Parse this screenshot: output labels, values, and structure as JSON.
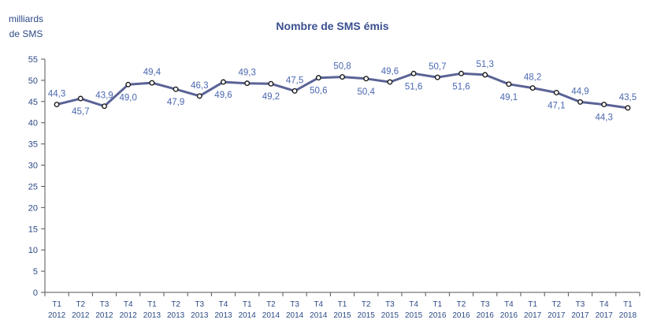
{
  "chart_data": {
    "type": "line",
    "title": "Nombre de SMS émis",
    "ylabel_lines": [
      "milliards",
      "de SMS"
    ],
    "xlabel": "",
    "ylim": [
      0,
      55
    ],
    "yticks": [
      0,
      5,
      10,
      15,
      20,
      25,
      30,
      35,
      40,
      45,
      50,
      55
    ],
    "grid": false,
    "legend": "none",
    "categories": [
      {
        "q": "T1",
        "y": "2012"
      },
      {
        "q": "T2",
        "y": "2012"
      },
      {
        "q": "T3",
        "y": "2012"
      },
      {
        "q": "T4",
        "y": "2012"
      },
      {
        "q": "T1",
        "y": "2013"
      },
      {
        "q": "T2",
        "y": "2013"
      },
      {
        "q": "T3",
        "y": "2013"
      },
      {
        "q": "T4",
        "y": "2013"
      },
      {
        "q": "T1",
        "y": "2014"
      },
      {
        "q": "T2",
        "y": "2014"
      },
      {
        "q": "T3",
        "y": "2014"
      },
      {
        "q": "T4",
        "y": "2014"
      },
      {
        "q": "T1",
        "y": "2015"
      },
      {
        "q": "T2",
        "y": "2015"
      },
      {
        "q": "T3",
        "y": "2015"
      },
      {
        "q": "T4",
        "y": "2015"
      },
      {
        "q": "T1",
        "y": "2016"
      },
      {
        "q": "T2",
        "y": "2016"
      },
      {
        "q": "T3",
        "y": "2016"
      },
      {
        "q": "T4",
        "y": "2016"
      },
      {
        "q": "T1",
        "y": "2017"
      },
      {
        "q": "T2",
        "y": "2017"
      },
      {
        "q": "T3",
        "y": "2017"
      },
      {
        "q": "T4",
        "y": "2017"
      },
      {
        "q": "T1",
        "y": "2018"
      }
    ],
    "series": [
      {
        "values": [
          44.3,
          45.7,
          43.9,
          49.0,
          49.4,
          47.9,
          46.3,
          49.6,
          49.3,
          49.2,
          47.5,
          50.6,
          50.8,
          50.4,
          49.6,
          51.6,
          50.7,
          51.6,
          51.3,
          49.1,
          48.2,
          47.1,
          44.9,
          44.3,
          43.5
        ],
        "labels": [
          "44,3",
          "45,7",
          "43,9",
          "49,0",
          "49,4",
          "47,9",
          "46,3",
          "49,6",
          "49,3",
          "49,2",
          "47,5",
          "50,6",
          "50,8",
          "50,4",
          "49,6",
          "51,6",
          "50,7",
          "51,6",
          "51,3",
          "49,1",
          "48,2",
          "47,1",
          "44,9",
          "44,3",
          "43,5"
        ],
        "label_positions": [
          "above",
          "below",
          "above",
          "below",
          "above",
          "below",
          "above",
          "below",
          "above",
          "below",
          "above",
          "below",
          "above",
          "below",
          "above",
          "below",
          "above",
          "below",
          "above",
          "below",
          "above",
          "below",
          "above",
          "below",
          "above"
        ]
      }
    ],
    "colors": {
      "line": "#5a6396",
      "marker_fill": "#ffffff",
      "marker_stroke": "#1f1f1f",
      "text": "#2e4a86",
      "data_label": "#4a67b0",
      "axis": "#555555"
    }
  }
}
